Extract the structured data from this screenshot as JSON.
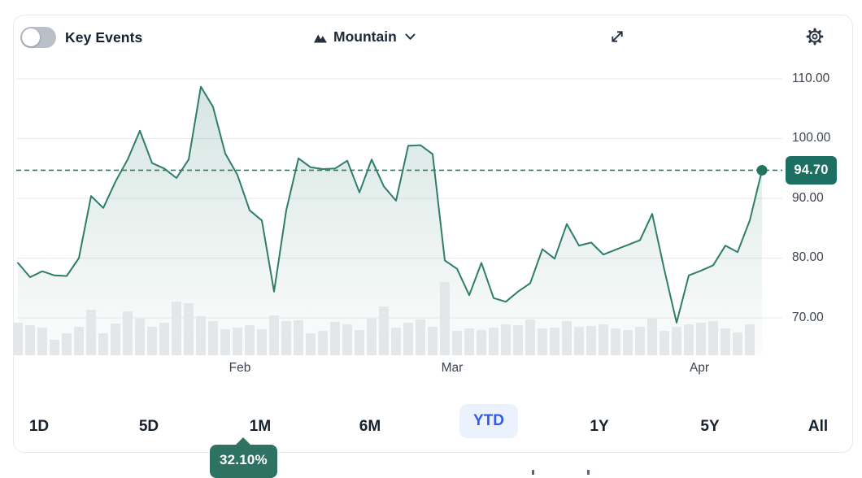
{
  "header": {
    "key_events_label": "Key Events",
    "key_events_toggle_on": false,
    "chart_type_label": "Mountain",
    "icons": {
      "chart_type": "mountain-icon",
      "dropdown": "chevron-down-icon",
      "fullscreen": "expand-arrows-icon",
      "settings": "gear-icon"
    }
  },
  "ranges": [
    {
      "label": "1D",
      "selected": false
    },
    {
      "label": "5D",
      "selected": false
    },
    {
      "label": "1M",
      "selected": false
    },
    {
      "label": "6M",
      "selected": false
    },
    {
      "label": "YTD",
      "selected": true
    },
    {
      "label": "1Y",
      "selected": false
    },
    {
      "label": "5Y",
      "selected": false
    },
    {
      "label": "All",
      "selected": false
    }
  ],
  "tooltip": {
    "value": "32.10%",
    "attached_to": "1M"
  },
  "chart_data": {
    "type": "area",
    "subtype": "mountain",
    "title": "",
    "xlabel": "",
    "ylabel": "",
    "grid": true,
    "legend": "none",
    "y_ticks": [
      "110.00",
      "100.00",
      "90.00",
      "80.00",
      "70.00"
    ],
    "y_range": [
      66,
      112
    ],
    "x_tick_labels": [
      "Feb",
      "Mar",
      "Apr"
    ],
    "x_tick_indices": [
      18.2,
      35.6,
      55.9
    ],
    "last_price": 94.7,
    "last_price_label": "94.70",
    "series": [
      {
        "name": "price",
        "values": [
          79.2,
          76.8,
          77.8,
          77.1,
          77.0,
          80.0,
          90.4,
          88.4,
          92.8,
          96.5,
          101.3,
          95.9,
          95.0,
          93.4,
          96.5,
          108.7,
          105.3,
          97.5,
          93.9,
          88.0,
          86.3,
          74.4,
          88.0,
          96.7,
          95.2,
          94.9,
          95.0,
          96.3,
          91.0,
          96.5,
          92.0,
          89.6,
          98.8,
          98.9,
          97.4,
          79.6,
          78.2,
          73.8,
          79.2,
          73.3,
          72.7,
          74.4,
          75.8,
          81.5,
          79.9,
          85.7,
          82.1,
          82.6,
          80.6,
          81.4,
          82.2,
          83.0,
          87.4,
          78.0,
          69.2,
          77.1,
          77.9,
          78.8,
          82.1,
          81.0,
          86.3,
          94.7
        ]
      }
    ],
    "volume": [
      40,
      37,
      34,
      19,
      27,
      35,
      56,
      27,
      39,
      54,
      45,
      35,
      40,
      66,
      64,
      48,
      42,
      32,
      34,
      37,
      32,
      49,
      42,
      43,
      27,
      30,
      41,
      38,
      31,
      45,
      60,
      34,
      40,
      44,
      35,
      90,
      30,
      33,
      31,
      34,
      38,
      37,
      44,
      33,
      34,
      42,
      35,
      36,
      38,
      33,
      31,
      35,
      45,
      30,
      35,
      38,
      40,
      42,
      33,
      28,
      38,
      0
    ],
    "colors": {
      "line": "#2f7d6a",
      "dot": "#22745f",
      "fill_top": "rgba(47,125,106,0.20)",
      "fill_bottom": "rgba(47,125,106,0.02)",
      "grid": "#e8eaec",
      "axis_text": "#3b434e",
      "volume_bar": "#e3e7ea",
      "badge_bg": "#1d7061",
      "tooltip_bg": "#2d7262",
      "selected_range_text": "#2d5bea",
      "selected_range_bg": "#ecf2fd",
      "toggle_track": "#b9c0c8"
    }
  }
}
